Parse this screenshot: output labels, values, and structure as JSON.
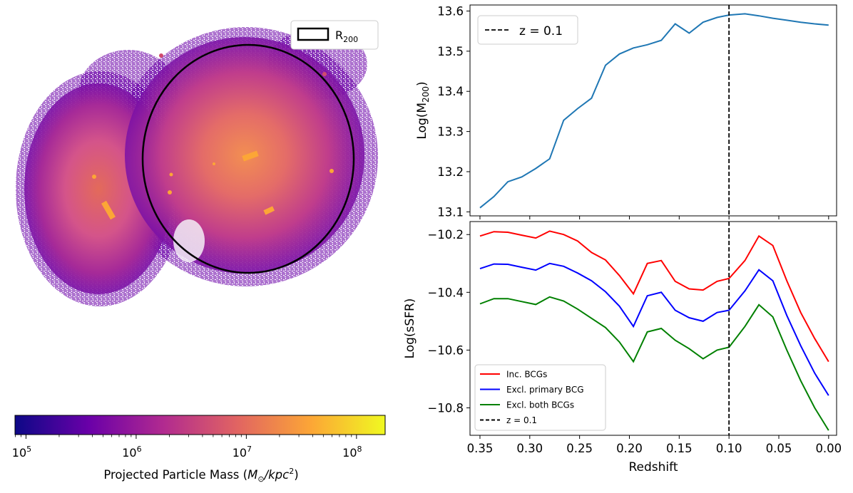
{
  "map": {
    "legend_label": "R",
    "legend_sub": "200",
    "colorbar": {
      "label_prefix": "Projected Particle Mass (",
      "label_math": "M",
      "label_sun": "⊙",
      "label_unit": "/kpc",
      "label_pow": "2",
      "label_suffix": ")",
      "ticks": [
        {
          "base": "10",
          "exp": "5",
          "log": 5
        },
        {
          "base": "10",
          "exp": "6",
          "log": 6
        },
        {
          "base": "10",
          "exp": "7",
          "log": 7
        },
        {
          "base": "10",
          "exp": "8",
          "log": 8
        }
      ],
      "log_range": [
        4.9,
        8.26
      ],
      "colors": [
        "#0d0887",
        "#6a00a8",
        "#b12a90",
        "#e16462",
        "#fca636",
        "#f0f921"
      ]
    }
  },
  "chart_data": [
    {
      "type": "line",
      "name": "m200",
      "ylabel_prefix": "Log(M",
      "ylabel_sub": "200",
      "ylabel_suffix": ")",
      "xlim": [
        0.36,
        -0.008
      ],
      "ylim": [
        13.09,
        13.615
      ],
      "yticks": [
        {
          "v": 13.1,
          "label": "13.1"
        },
        {
          "v": 13.2,
          "label": "13.2"
        },
        {
          "v": 13.3,
          "label": "13.3"
        },
        {
          "v": 13.4,
          "label": "13.4"
        },
        {
          "v": 13.5,
          "label": "13.5"
        },
        {
          "v": 13.6,
          "label": "13.6"
        }
      ],
      "xticks": [
        0.35,
        0.3,
        0.25,
        0.2,
        0.15,
        0.1,
        0.05,
        0.0
      ],
      "series": [
        {
          "name": "M200",
          "color": "#1f77b4",
          "x": [
            0.35,
            0.336,
            0.322,
            0.308,
            0.294,
            0.28,
            0.266,
            0.252,
            0.238,
            0.224,
            0.21,
            0.196,
            0.182,
            0.168,
            0.154,
            0.14,
            0.126,
            0.112,
            0.1,
            0.084,
            0.07,
            0.056,
            0.042,
            0.028,
            0.014,
            0.0
          ],
          "y": [
            13.11,
            13.138,
            13.175,
            13.187,
            13.208,
            13.232,
            13.328,
            13.357,
            13.383,
            13.465,
            13.493,
            13.508,
            13.516,
            13.527,
            13.568,
            13.545,
            13.572,
            13.584,
            13.59,
            13.593,
            13.588,
            13.582,
            13.577,
            13.572,
            13.568,
            13.565
          ]
        }
      ],
      "vline": {
        "x": 0.1,
        "label": "z = 0.1"
      }
    },
    {
      "type": "line",
      "name": "ssfr",
      "ylabel": "Log(sSFR)",
      "xlabel": "Redshift",
      "xlim": [
        0.36,
        -0.008
      ],
      "ylim": [
        -10.895,
        -10.155
      ],
      "yticks": [
        {
          "v": -10.2,
          "label": "−10.2"
        },
        {
          "v": -10.4,
          "label": "−10.4"
        },
        {
          "v": -10.6,
          "label": "−10.6"
        },
        {
          "v": -10.8,
          "label": "−10.8"
        }
      ],
      "xticks": [
        {
          "v": 0.35,
          "label": "0.35"
        },
        {
          "v": 0.3,
          "label": "0.30"
        },
        {
          "v": 0.25,
          "label": "0.25"
        },
        {
          "v": 0.2,
          "label": "0.20"
        },
        {
          "v": 0.15,
          "label": "0.15"
        },
        {
          "v": 0.1,
          "label": "0.10"
        },
        {
          "v": 0.05,
          "label": "0.05"
        },
        {
          "v": 0.0,
          "label": "0.00"
        }
      ],
      "x": [
        0.35,
        0.336,
        0.322,
        0.308,
        0.294,
        0.28,
        0.266,
        0.252,
        0.238,
        0.224,
        0.21,
        0.196,
        0.182,
        0.168,
        0.154,
        0.14,
        0.126,
        0.112,
        0.1,
        0.084,
        0.07,
        0.056,
        0.042,
        0.028,
        0.014,
        0.0
      ],
      "series": [
        {
          "name": "Inc. BCGs",
          "color": "#ff0000",
          "y": [
            -10.205,
            -10.19,
            -10.192,
            -10.202,
            -10.212,
            -10.188,
            -10.2,
            -10.222,
            -10.262,
            -10.288,
            -10.342,
            -10.405,
            -10.3,
            -10.29,
            -10.362,
            -10.388,
            -10.392,
            -10.362,
            -10.352,
            -10.29,
            -10.205,
            -10.238,
            -10.36,
            -10.47,
            -10.56,
            -10.64
          ]
        },
        {
          "name": "Excl. primary BCG",
          "color": "#0000ff",
          "y": [
            -10.318,
            -10.302,
            -10.303,
            -10.313,
            -10.323,
            -10.3,
            -10.31,
            -10.333,
            -10.36,
            -10.398,
            -10.448,
            -10.518,
            -10.412,
            -10.4,
            -10.462,
            -10.488,
            -10.5,
            -10.47,
            -10.462,
            -10.395,
            -10.322,
            -10.36,
            -10.48,
            -10.585,
            -10.68,
            -10.757
          ]
        },
        {
          "name": "Excl. both BCGs",
          "color": "#008000",
          "y": [
            -10.44,
            -10.422,
            -10.422,
            -10.432,
            -10.442,
            -10.416,
            -10.43,
            -10.458,
            -10.49,
            -10.522,
            -10.572,
            -10.64,
            -10.537,
            -10.525,
            -10.566,
            -10.595,
            -10.63,
            -10.6,
            -10.59,
            -10.518,
            -10.443,
            -10.485,
            -10.6,
            -10.706,
            -10.8,
            -10.878
          ]
        }
      ],
      "vline": {
        "x": 0.1,
        "label": "z = 0.1"
      }
    }
  ]
}
